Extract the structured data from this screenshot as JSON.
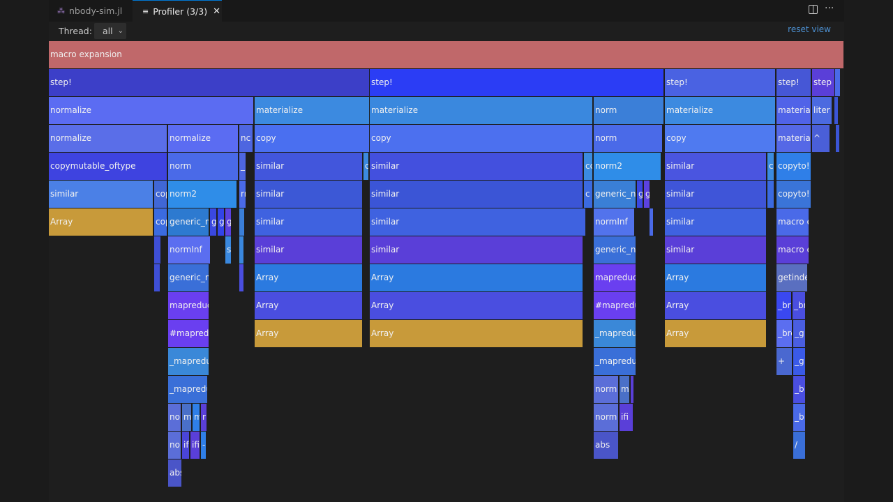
{
  "tabs": [
    {
      "label": "nbody-sim.jl",
      "icon": "julia-dots-icon",
      "active": false
    },
    {
      "label": "Profiler (3/3)",
      "icon": "lines-icon",
      "active": true
    }
  ],
  "toolbar": {
    "thread_label": "Thread:",
    "thread_value": "all",
    "reset_label": "reset view"
  },
  "colors": {
    "accent": "#0078d4",
    "link": "#4c8fd0",
    "macro": "#c0686a",
    "alloc": "#c89a3a"
  },
  "flame": {
    "total_samples": 1140,
    "frames": [
      {
        "d": 0,
        "s": 0,
        "n": 1140,
        "label": "macro expansion",
        "c": "#c0686a"
      },
      {
        "d": 1,
        "s": 0,
        "n": 460,
        "label": "step!",
        "c": "#3c3fc8"
      },
      {
        "d": 1,
        "s": 460,
        "n": 422,
        "label": "step!",
        "c": "#2b3df5"
      },
      {
        "d": 1,
        "s": 883,
        "n": 159,
        "label": "step!",
        "c": "#4a62e2"
      },
      {
        "d": 1,
        "s": 1043,
        "n": 50,
        "label": "step!",
        "c": "#4657d6"
      },
      {
        "d": 1,
        "s": 1094,
        "n": 33,
        "label": "step s",
        "c": "#5a3fd8"
      },
      {
        "d": 1,
        "s": 1127,
        "n": 8,
        "label": "",
        "c": "#4a6ae8"
      },
      {
        "d": 2,
        "s": 0,
        "n": 294,
        "label": "normalize",
        "c": "#5b6cf2"
      },
      {
        "d": 2,
        "s": 295,
        "n": 165,
        "label": "materialize",
        "c": "#3c8ae0"
      },
      {
        "d": 2,
        "s": 460,
        "n": 320,
        "label": "materialize",
        "c": "#3a88de"
      },
      {
        "d": 2,
        "s": 781,
        "n": 101,
        "label": "norm",
        "c": "#3b7fd8"
      },
      {
        "d": 2,
        "s": 883,
        "n": 159,
        "label": "materialize",
        "c": "#3c8ae0"
      },
      {
        "d": 2,
        "s": 1043,
        "n": 50,
        "label": "materiali",
        "c": "#5063e8"
      },
      {
        "d": 2,
        "s": 1094,
        "n": 29,
        "label": "liter",
        "c": "#4b6ae0"
      },
      {
        "d": 2,
        "s": 1126,
        "n": 6,
        "label": "",
        "c": "#3b55d6"
      },
      {
        "d": 3,
        "s": 0,
        "n": 170,
        "label": "normalize",
        "c": "#5a6ee8"
      },
      {
        "d": 3,
        "s": 171,
        "n": 101,
        "label": "normalize",
        "c": "#5b6cf2"
      },
      {
        "d": 3,
        "s": 273,
        "n": 20,
        "label": "nc",
        "c": "#4e66e0"
      },
      {
        "d": 3,
        "s": 295,
        "n": 165,
        "label": "copy",
        "c": "#4a6ff0"
      },
      {
        "d": 3,
        "s": 460,
        "n": 320,
        "label": "copy",
        "c": "#4c70ef"
      },
      {
        "d": 3,
        "s": 781,
        "n": 99,
        "label": "norm",
        "c": "#4a6ae8"
      },
      {
        "d": 3,
        "s": 883,
        "n": 159,
        "label": "copy",
        "c": "#4f7af0"
      },
      {
        "d": 3,
        "s": 1043,
        "n": 50,
        "label": "materiali",
        "c": "#5568e6"
      },
      {
        "d": 3,
        "s": 1094,
        "n": 26,
        "label": "^",
        "c": "#4a5fd8"
      },
      {
        "d": 3,
        "s": 1128,
        "n": 6,
        "label": "",
        "c": "#3b55d6"
      },
      {
        "d": 4,
        "s": 0,
        "n": 170,
        "label": "copymutable_oftype",
        "c": "#3e43e0"
      },
      {
        "d": 4,
        "s": 171,
        "n": 101,
        "label": "norm",
        "c": "#4a6ae8"
      },
      {
        "d": 4,
        "s": 273,
        "n": 10,
        "label": "_",
        "c": "#4e66e0"
      },
      {
        "d": 4,
        "s": 295,
        "n": 155,
        "label": "similar",
        "c": "#4256dc"
      },
      {
        "d": 4,
        "s": 451,
        "n": 8,
        "label": "c",
        "c": "#3c8ae0"
      },
      {
        "d": 4,
        "s": 460,
        "n": 306,
        "label": "similar",
        "c": "#4350de"
      },
      {
        "d": 4,
        "s": 767,
        "n": 13,
        "label": "cc",
        "c": "#3b8be0"
      },
      {
        "d": 4,
        "s": 781,
        "n": 97,
        "label": "norm2",
        "c": "#2f8de8"
      },
      {
        "d": 4,
        "s": 883,
        "n": 146,
        "label": "similar",
        "c": "#4a55e0"
      },
      {
        "d": 4,
        "s": 1030,
        "n": 10,
        "label": "cc",
        "c": "#3b8be0"
      },
      {
        "d": 4,
        "s": 1043,
        "n": 50,
        "label": "copyto!",
        "c": "#2f7fe8"
      },
      {
        "d": 5,
        "s": 0,
        "n": 150,
        "label": "similar",
        "c": "#4b80e6"
      },
      {
        "d": 5,
        "s": 151,
        "n": 19,
        "label": "cop",
        "c": "#4067d6"
      },
      {
        "d": 5,
        "s": 171,
        "n": 99,
        "label": "norm2",
        "c": "#2f8de8"
      },
      {
        "d": 5,
        "s": 273,
        "n": 10,
        "label": "rr",
        "c": "#4a6ae8"
      },
      {
        "d": 5,
        "s": 295,
        "n": 155,
        "label": "similar",
        "c": "#3c58d6"
      },
      {
        "d": 5,
        "s": 460,
        "n": 306,
        "label": "similar",
        "c": "#3b55d6"
      },
      {
        "d": 5,
        "s": 767,
        "n": 13,
        "label": "c",
        "c": "#3b6ae0"
      },
      {
        "d": 5,
        "s": 781,
        "n": 61,
        "label": "generic_nc",
        "c": "#3a7fd6"
      },
      {
        "d": 5,
        "s": 843,
        "n": 9,
        "label": "g",
        "c": "#3a48e0"
      },
      {
        "d": 5,
        "s": 853,
        "n": 9,
        "label": "g",
        "c": "#5c42e0"
      },
      {
        "d": 5,
        "s": 883,
        "n": 146,
        "label": "similar",
        "c": "#3f55d8"
      },
      {
        "d": 5,
        "s": 1030,
        "n": 10,
        "label": "",
        "c": "#3b6ae0"
      },
      {
        "d": 5,
        "s": 1043,
        "n": 50,
        "label": "copyto!",
        "c": "#3a74d8"
      },
      {
        "d": 6,
        "s": 0,
        "n": 150,
        "label": "Array",
        "c": "#c89a3a"
      },
      {
        "d": 6,
        "s": 151,
        "n": 19,
        "label": "cop",
        "c": "#3b6be0"
      },
      {
        "d": 6,
        "s": 171,
        "n": 59,
        "label": "generic_n",
        "c": "#2d7ad0"
      },
      {
        "d": 6,
        "s": 231,
        "n": 10,
        "label": "g",
        "c": "#3a48e0"
      },
      {
        "d": 6,
        "s": 242,
        "n": 10,
        "label": "g",
        "c": "#3344e8"
      },
      {
        "d": 6,
        "s": 253,
        "n": 9,
        "label": "g",
        "c": "#5c42e0"
      },
      {
        "d": 6,
        "s": 273,
        "n": 8,
        "label": "",
        "c": "#3b7fd8"
      },
      {
        "d": 6,
        "s": 295,
        "n": 155,
        "label": "similar",
        "c": "#3f62e0"
      },
      {
        "d": 6,
        "s": 460,
        "n": 310,
        "label": "similar",
        "c": "#3f62e0"
      },
      {
        "d": 6,
        "s": 781,
        "n": 59,
        "label": "normInf",
        "c": "#5273ec"
      },
      {
        "d": 6,
        "s": 861,
        "n": 6,
        "label": "",
        "c": "#4a6ae8"
      },
      {
        "d": 6,
        "s": 883,
        "n": 146,
        "label": "similar",
        "c": "#3f62e0"
      },
      {
        "d": 6,
        "s": 1043,
        "n": 47,
        "label": "macro e",
        "c": "#4a6ae8"
      },
      {
        "d": 7,
        "s": 151,
        "n": 10,
        "label": "",
        "c": "#3e4fd6"
      },
      {
        "d": 7,
        "s": 171,
        "n": 61,
        "label": "normInf",
        "c": "#5b6ef0"
      },
      {
        "d": 7,
        "s": 253,
        "n": 9,
        "label": "s",
        "c": "#3a88de"
      },
      {
        "d": 7,
        "s": 273,
        "n": 7,
        "label": "",
        "c": "#3a88de"
      },
      {
        "d": 7,
        "s": 295,
        "n": 155,
        "label": "similar",
        "c": "#5a3fd8"
      },
      {
        "d": 7,
        "s": 460,
        "n": 306,
        "label": "similar",
        "c": "#5a3fd8"
      },
      {
        "d": 7,
        "s": 781,
        "n": 61,
        "label": "generic_nc",
        "c": "#3a6fd8"
      },
      {
        "d": 7,
        "s": 883,
        "n": 146,
        "label": "similar",
        "c": "#5a3fd8"
      },
      {
        "d": 7,
        "s": 1043,
        "n": 47,
        "label": "macro e",
        "c": "#5a3fd8"
      },
      {
        "d": 8,
        "s": 151,
        "n": 9,
        "label": "",
        "c": "#3e4fd6"
      },
      {
        "d": 8,
        "s": 171,
        "n": 59,
        "label": "generic_n",
        "c": "#3a6fd8"
      },
      {
        "d": 8,
        "s": 273,
        "n": 7,
        "label": "",
        "c": "#4a4ee0"
      },
      {
        "d": 8,
        "s": 295,
        "n": 155,
        "label": "Array",
        "c": "#2b7ae0"
      },
      {
        "d": 8,
        "s": 460,
        "n": 306,
        "label": "Array",
        "c": "#2b7ae0"
      },
      {
        "d": 8,
        "s": 781,
        "n": 61,
        "label": "mapreduc",
        "c": "#6a3ff0"
      },
      {
        "d": 8,
        "s": 883,
        "n": 146,
        "label": "Array",
        "c": "#2b7ae0"
      },
      {
        "d": 8,
        "s": 1043,
        "n": 45,
        "label": "getinde",
        "c": "#5a6fc0"
      },
      {
        "d": 9,
        "s": 171,
        "n": 59,
        "label": "mapreduc",
        "c": "#6a3ff0"
      },
      {
        "d": 9,
        "s": 295,
        "n": 155,
        "label": "Array",
        "c": "#4a4ee0"
      },
      {
        "d": 9,
        "s": 460,
        "n": 306,
        "label": "Array",
        "c": "#4a4ee0"
      },
      {
        "d": 9,
        "s": 781,
        "n": 61,
        "label": "#mapredu",
        "c": "#6a3ff0"
      },
      {
        "d": 9,
        "s": 883,
        "n": 146,
        "label": "Array",
        "c": "#4a4ee0"
      },
      {
        "d": 9,
        "s": 1043,
        "n": 22,
        "label": "_brc",
        "c": "#3a48f0"
      },
      {
        "d": 9,
        "s": 1066,
        "n": 19,
        "label": "_br",
        "c": "#4a4ee0"
      },
      {
        "d": 10,
        "s": 171,
        "n": 59,
        "label": "#mapredu",
        "c": "#6a3ff0"
      },
      {
        "d": 10,
        "s": 295,
        "n": 155,
        "label": "Array",
        "c": "#c89a3a"
      },
      {
        "d": 10,
        "s": 460,
        "n": 306,
        "label": "Array",
        "c": "#c89a3a"
      },
      {
        "d": 10,
        "s": 781,
        "n": 61,
        "label": "_mapredu",
        "c": "#3a88d8"
      },
      {
        "d": 10,
        "s": 883,
        "n": 146,
        "label": "Array",
        "c": "#c89a3a"
      },
      {
        "d": 10,
        "s": 1043,
        "n": 23,
        "label": "_brc",
        "c": "#5b6ef0"
      },
      {
        "d": 10,
        "s": 1067,
        "n": 18,
        "label": "_g",
        "c": "#4a5ee0"
      },
      {
        "d": 11,
        "s": 171,
        "n": 59,
        "label": "_mapredu",
        "c": "#3a88d8"
      },
      {
        "d": 11,
        "s": 781,
        "n": 61,
        "label": "_mapredu",
        "c": "#3a6fd8"
      },
      {
        "d": 11,
        "s": 1043,
        "n": 23,
        "label": "+",
        "c": "#4a68d0"
      },
      {
        "d": 11,
        "s": 1067,
        "n": 18,
        "label": "_g",
        "c": "#3a5ae8"
      },
      {
        "d": 12,
        "s": 171,
        "n": 57,
        "label": "_mapredu",
        "c": "#3a6fd8"
      },
      {
        "d": 12,
        "s": 781,
        "n": 36,
        "label": "norm",
        "c": "#5b6ed8"
      },
      {
        "d": 12,
        "s": 818,
        "n": 15,
        "label": "ma",
        "c": "#4a70c8"
      },
      {
        "d": 12,
        "s": 834,
        "n": 5,
        "label": "",
        "c": "#5a3fd8"
      },
      {
        "d": 12,
        "s": 1067,
        "n": 18,
        "label": "_b",
        "c": "#4a4ee0"
      },
      {
        "d": 13,
        "s": 171,
        "n": 19,
        "label": "nor",
        "c": "#5b6ed8"
      },
      {
        "d": 13,
        "s": 191,
        "n": 14,
        "label": "m",
        "c": "#4a70c8"
      },
      {
        "d": 13,
        "s": 206,
        "n": 11,
        "label": "m",
        "c": "#2f7fe8"
      },
      {
        "d": 13,
        "s": 218,
        "n": 9,
        "label": "r",
        "c": "#5a3fd8"
      },
      {
        "d": 13,
        "s": 781,
        "n": 36,
        "label": "norm",
        "c": "#5b6ed8"
      },
      {
        "d": 13,
        "s": 818,
        "n": 20,
        "label": "ifi",
        "c": "#5a3fd8"
      },
      {
        "d": 13,
        "s": 1067,
        "n": 18,
        "label": "_b",
        "c": "#4a6ae8"
      },
      {
        "d": 14,
        "s": 171,
        "n": 19,
        "label": "noi",
        "c": "#5b6ed8"
      },
      {
        "d": 14,
        "s": 191,
        "n": 11,
        "label": "if",
        "c": "#4a45d8"
      },
      {
        "d": 14,
        "s": 203,
        "n": 14,
        "label": "ifi",
        "c": "#5a3fd8"
      },
      {
        "d": 14,
        "s": 218,
        "n": 8,
        "label": "-",
        "c": "#2f7fe8"
      },
      {
        "d": 14,
        "s": 781,
        "n": 36,
        "label": "abs",
        "c": "#4a55c8"
      },
      {
        "d": 14,
        "s": 1067,
        "n": 18,
        "label": "/",
        "c": "#3a6fd8"
      },
      {
        "d": 15,
        "s": 171,
        "n": 20,
        "label": "abs",
        "c": "#4a55c8"
      }
    ]
  }
}
